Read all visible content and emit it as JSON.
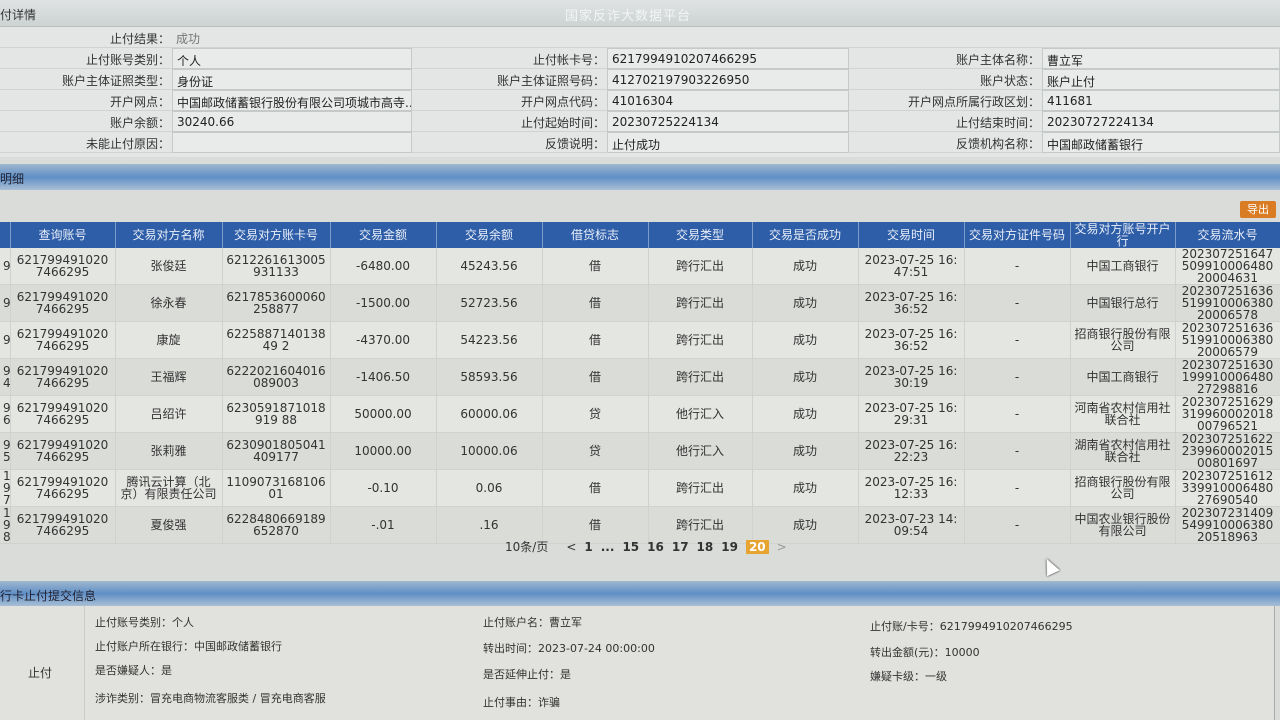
{
  "header": {
    "title": "付详情",
    "watermark": "国家反诈大数据平台"
  },
  "info": {
    "result_label": "止付结果：",
    "result_value": "成功",
    "rows": [
      {
        "l1": "止付账号类别：",
        "v1": "个人",
        "l2": "止付帐卡号：",
        "v2": "6217994910207466295",
        "l3": "账户主体名称：",
        "v3": "曹立军"
      },
      {
        "l1": "账户主体证照类型：",
        "v1": "身份证",
        "l2": "账户主体证照号码：",
        "v2": "412702197903226950",
        "l3": "账户状态：",
        "v3": "账户止付"
      },
      {
        "l1": "开户网点：",
        "v1": "中国邮政储蓄银行股份有限公司项城市高寺...",
        "l2": "开户网点代码：",
        "v2": "41016304",
        "l3": "开户网点所属行政区划：",
        "v3": "411681"
      },
      {
        "l1": "账户余额：",
        "v1": "30240.66",
        "l2": "止付起始时间：",
        "v2": "20230725224134",
        "l3": "止付结束时间：",
        "v3": "20230727224134"
      },
      {
        "l1": "未能止付原因：",
        "v1": "",
        "l2": "反馈说明：",
        "v2": "止付成功",
        "l3": "反馈机构名称：",
        "v3": "中国邮政储蓄银行"
      }
    ]
  },
  "detail": {
    "section_title": "明细",
    "export_label": "导出",
    "columns": [
      "",
      "查询账号",
      "交易对方名称",
      "交易对方账卡号",
      "交易金额",
      "交易余额",
      "借贷标志",
      "交易类型",
      "交易是否成功",
      "交易时间",
      "交易对方证件号码",
      "交易对方账号开户行",
      "交易流水号"
    ],
    "rows": [
      [
        "9",
        "6217994910207466295",
        "张俊廷",
        "6212261613005931133",
        "-6480.00",
        "45243.56",
        "借",
        "跨行汇出",
        "成功",
        "2023-07-25 16:47:51",
        "-",
        "中国工商银行",
        "20230725164750991000648020004631"
      ],
      [
        "9",
        "6217994910207466295",
        "徐永春",
        "6217853600060258877",
        "-1500.00",
        "52723.56",
        "借",
        "跨行汇出",
        "成功",
        "2023-07-25 16:36:52",
        "-",
        "中国银行总行",
        "20230725163651991000638020006578"
      ],
      [
        "9",
        "6217994910207466295",
        "康旋",
        "622588714013849 2",
        "-4370.00",
        "54223.56",
        "借",
        "跨行汇出",
        "成功",
        "2023-07-25 16:36:52",
        "-",
        "招商银行股份有限公司",
        "20230725163651991000638020006579"
      ],
      [
        "9 4",
        "6217994910207466295",
        "王福辉",
        "6222021604016089003",
        "-1406.50",
        "58593.56",
        "借",
        "跨行汇出",
        "成功",
        "2023-07-25 16:30:19",
        "-",
        "中国工商银行",
        "20230725163019991000648027298816"
      ],
      [
        "9 6",
        "6217994910207466295",
        "吕绍许",
        "6230591871018919 88",
        "50000.00",
        "60000.06",
        "贷",
        "他行汇入",
        "成功",
        "2023-07-25 16:29:31",
        "-",
        "河南省农村信用社联合社",
        "20230725162931996000201800796521"
      ],
      [
        "9 5",
        "6217994910207466295",
        "张莉雅",
        "6230901805041409177",
        "10000.00",
        "10000.06",
        "贷",
        "他行汇入",
        "成功",
        "2023-07-25 16:22:23",
        "-",
        "湖南省农村信用社联合社",
        "20230725162223996000201500801697"
      ],
      [
        "19 7",
        "6217994910207466295",
        "腾讯云计算（北京）有限责任公司",
        "1109073168106 01",
        "-0.10",
        "0.06",
        "借",
        "跨行汇出",
        "成功",
        "2023-07-25 16:12:33",
        "-",
        "招商银行股份有限公司",
        "20230725161233991000648027690540"
      ],
      [
        "19 8",
        "6217994910207466295",
        "夏俊强",
        "6228480669189652870",
        "-.01",
        ".16",
        "借",
        "跨行汇出",
        "成功",
        "2023-07-23 14:09:54",
        "-",
        "中国农业银行股份有限公司",
        "20230723140954991000638020518963"
      ]
    ]
  },
  "pagination": {
    "page_size": "10条/页",
    "prev": "<",
    "next": ">",
    "pages": [
      "1",
      "...",
      "15",
      "16",
      "17",
      "18",
      "19",
      "20"
    ],
    "current": "20"
  },
  "submit": {
    "section_title": "行卡止付提交信息",
    "side_label": "止付",
    "items": [
      "止付账号类别：个人",
      "止付账户所在银行：中国邮政储蓄银行",
      "是否嫌疑人：是",
      "涉诈类别：冒充电商物流客服类 / 冒充电商客服",
      "止付账户名：曹立军",
      "转出时间：2023-07-24 00:00:00",
      "是否延伸止付：是",
      "止付事由：诈骗",
      "止付账/卡号：6217994910207466295",
      "转出金额(元)：10000",
      "嫌疑卡级：一级"
    ]
  },
  "colors": {
    "header_blue": "#2f5ea8",
    "accent_orange": "#e7a431"
  }
}
